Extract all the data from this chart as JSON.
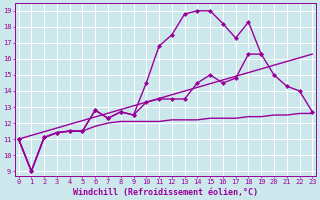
{
  "series": [
    {
      "x": [
        0,
        1,
        2,
        3,
        4,
        5,
        6,
        7,
        8,
        9,
        10,
        11,
        12,
        13,
        14,
        15,
        16,
        17,
        18,
        19,
        20,
        21,
        22,
        23
      ],
      "y": [
        11,
        9,
        11.1,
        11.4,
        11.5,
        11.5,
        11.8,
        12.0,
        12.1,
        12.1,
        12.1,
        12.1,
        12.2,
        12.2,
        12.2,
        12.3,
        12.3,
        12.3,
        12.4,
        12.4,
        12.5,
        12.5,
        12.6,
        12.6
      ],
      "color": "#990099",
      "marker": null,
      "markersize": 2,
      "linewidth": 1.0
    },
    {
      "x": [
        0,
        23
      ],
      "y": [
        11,
        16.3
      ],
      "color": "#990099",
      "marker": null,
      "markersize": 0,
      "linewidth": 1.0
    },
    {
      "x": [
        0,
        1,
        2,
        3,
        4,
        5,
        6,
        7,
        8,
        9,
        10,
        11,
        12,
        13,
        14,
        15,
        16,
        17,
        18,
        19,
        20,
        21,
        22,
        23
      ],
      "y": [
        11,
        9,
        11.1,
        11.4,
        11.5,
        11.5,
        12.8,
        12.3,
        12.7,
        12.5,
        13.3,
        13.5,
        13.5,
        13.5,
        14.5,
        15.0,
        14.5,
        14.8,
        16.3,
        16.3,
        15.0,
        14.3,
        14.0,
        12.7
      ],
      "color": "#990099",
      "marker": "D",
      "markersize": 2,
      "linewidth": 1.0
    },
    {
      "x": [
        0,
        1,
        2,
        3,
        4,
        5,
        6,
        7,
        8,
        9,
        10,
        11,
        12,
        13,
        14,
        15,
        16,
        17,
        18,
        19
      ],
      "y": [
        11,
        9,
        11.1,
        11.4,
        11.5,
        11.5,
        12.8,
        12.3,
        12.7,
        12.5,
        14.5,
        16.8,
        17.5,
        18.8,
        19.0,
        19.0,
        18.2,
        17.3,
        18.3,
        16.3
      ],
      "color": "#990099",
      "marker": "D",
      "markersize": 2,
      "linewidth": 1.0
    }
  ],
  "xlim": [
    -0.3,
    23.3
  ],
  "ylim": [
    8.7,
    19.5
  ],
  "xticks": [
    0,
    1,
    2,
    3,
    4,
    5,
    6,
    7,
    8,
    9,
    10,
    11,
    12,
    13,
    14,
    15,
    16,
    17,
    18,
    19,
    20,
    21,
    22,
    23
  ],
  "yticks": [
    9,
    10,
    11,
    12,
    13,
    14,
    15,
    16,
    17,
    18,
    19
  ],
  "xlabel": "Windchill (Refroidissement éolien,°C)",
  "background_color": "#cce8ec",
  "grid_color": "#b0d8dc",
  "text_color": "#990099",
  "tick_fontsize": 5.0,
  "label_fontsize": 6.0
}
